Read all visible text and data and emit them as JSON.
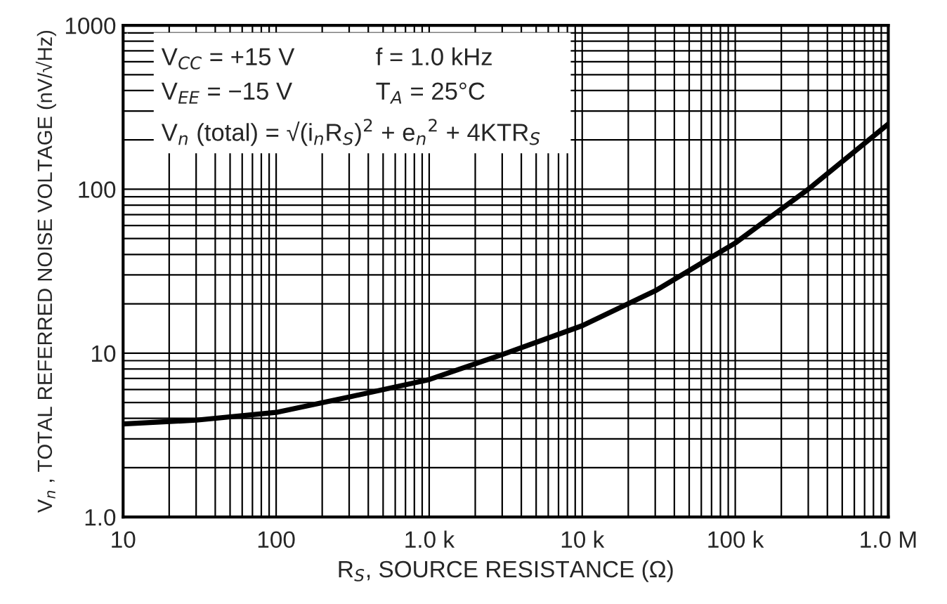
{
  "chart_data": {
    "type": "line",
    "xlabel": "R$_{S}$, SOURCE RESISTANCE (Ω)",
    "ylabel": "V$_{n}$ , TOTAL REFERRED NOISE VOLTAGE (nV/√Hz)",
    "annotations": [
      "V$_{CC}$ = +15 V",
      "f = 1.0 kHz",
      "V$_{EE}$ = −15 V",
      "T$_{A}$ = 25°C",
      "V$_{n}$ (total) = √(i$_{n}$R$_{S}$)$^{2}$ + e$_{n}$$^{2}$ + 4KTR$_{S}$"
    ],
    "x": [
      10,
      30,
      100,
      300,
      1000,
      3000,
      10000,
      30000,
      100000,
      300000,
      1000000
    ],
    "series": [
      {
        "color": "#000000",
        "values": [
          3.7,
          3.9,
          4.35,
          5.4,
          6.9,
          9.8,
          14.7,
          24,
          47,
          100,
          250
        ]
      }
    ],
    "log": "xy",
    "xlim": [
      10,
      1000000
    ],
    "ylim": [
      1,
      1000
    ],
    "xticks": [
      10,
      100,
      {
        "value": 1000,
        "label": "1.0 k"
      },
      {
        "value": 10000,
        "label": "10 k"
      },
      {
        "value": 100000,
        "label": "100 k"
      },
      {
        "value": 1000000,
        "label": "1.0 M"
      }
    ],
    "yticks": [
      {
        "value": 1,
        "label": "1.0"
      },
      10,
      100,
      1000
    ],
    "grid": true,
    "marker": "none",
    "line_style": "solid"
  }
}
